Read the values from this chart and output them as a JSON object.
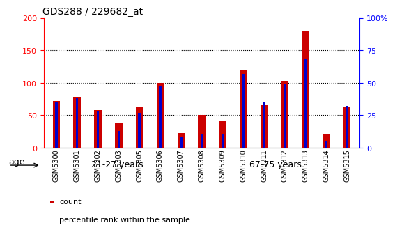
{
  "title": "GDS288 / 229682_at",
  "categories": [
    "GSM5300",
    "GSM5301",
    "GSM5302",
    "GSM5303",
    "GSM5305",
    "GSM5306",
    "GSM5307",
    "GSM5308",
    "GSM5309",
    "GSM5310",
    "GSM5311",
    "GSM5312",
    "GSM5313",
    "GSM5314",
    "GSM5315"
  ],
  "counts": [
    72,
    78,
    58,
    38,
    63,
    100,
    23,
    50,
    42,
    120,
    67,
    103,
    180,
    22,
    62
  ],
  "percentiles": [
    35,
    38,
    28,
    13,
    27,
    48,
    8,
    10,
    10,
    57,
    35,
    49,
    68,
    5,
    32
  ],
  "bar_color": "#cc0000",
  "pct_color": "#0000cc",
  "ylim_left": [
    0,
    200
  ],
  "ylim_right": [
    0,
    100
  ],
  "yticks_left": [
    0,
    50,
    100,
    150,
    200
  ],
  "yticks_right": [
    0,
    25,
    50,
    75,
    100
  ],
  "ytick_labels_right": [
    "0",
    "25",
    "50",
    "75",
    "100%"
  ],
  "group1_label": "21-27 years",
  "group2_label": "67-75 years",
  "group1_count": 7,
  "group2_count": 8,
  "age_label": "age",
  "legend_count": "count",
  "legend_pct": "percentile rank within the sample",
  "bg_light_green": "#ccffcc",
  "bg_dark_green": "#66ee66",
  "bar_width": 0.35,
  "pct_bar_width": 0.12
}
